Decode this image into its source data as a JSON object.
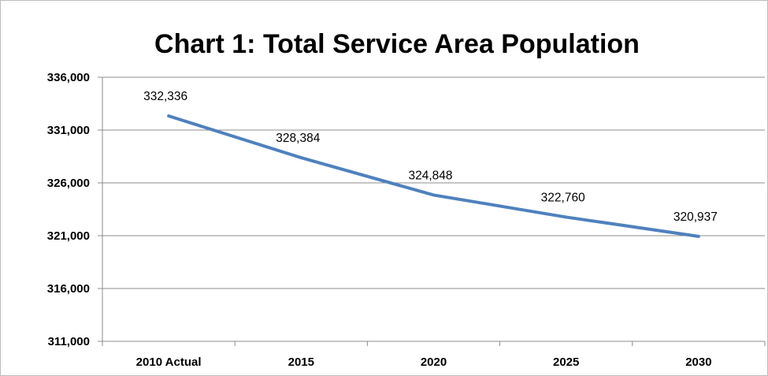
{
  "chart_data": {
    "type": "line",
    "title": "Chart 1: Total Service Area Population",
    "xlabel": "",
    "ylabel": "",
    "categories": [
      "2010 Actual",
      "2015",
      "2020",
      "2025",
      "2030"
    ],
    "series": [
      {
        "values": [
          332336,
          328384,
          324848,
          322760,
          320937
        ],
        "data_labels": [
          "332,336",
          "328,384",
          "324,848",
          "322,760",
          "320,937"
        ],
        "color": "#4f81bd"
      }
    ],
    "ylim": [
      311000,
      336000
    ],
    "yticks": [
      311000,
      316000,
      321000,
      326000,
      331000,
      336000
    ],
    "ytick_labels": [
      "311,000",
      "316,000",
      "321,000",
      "326,000",
      "331,000",
      "336,000"
    ],
    "grid": true,
    "legend": "none"
  }
}
